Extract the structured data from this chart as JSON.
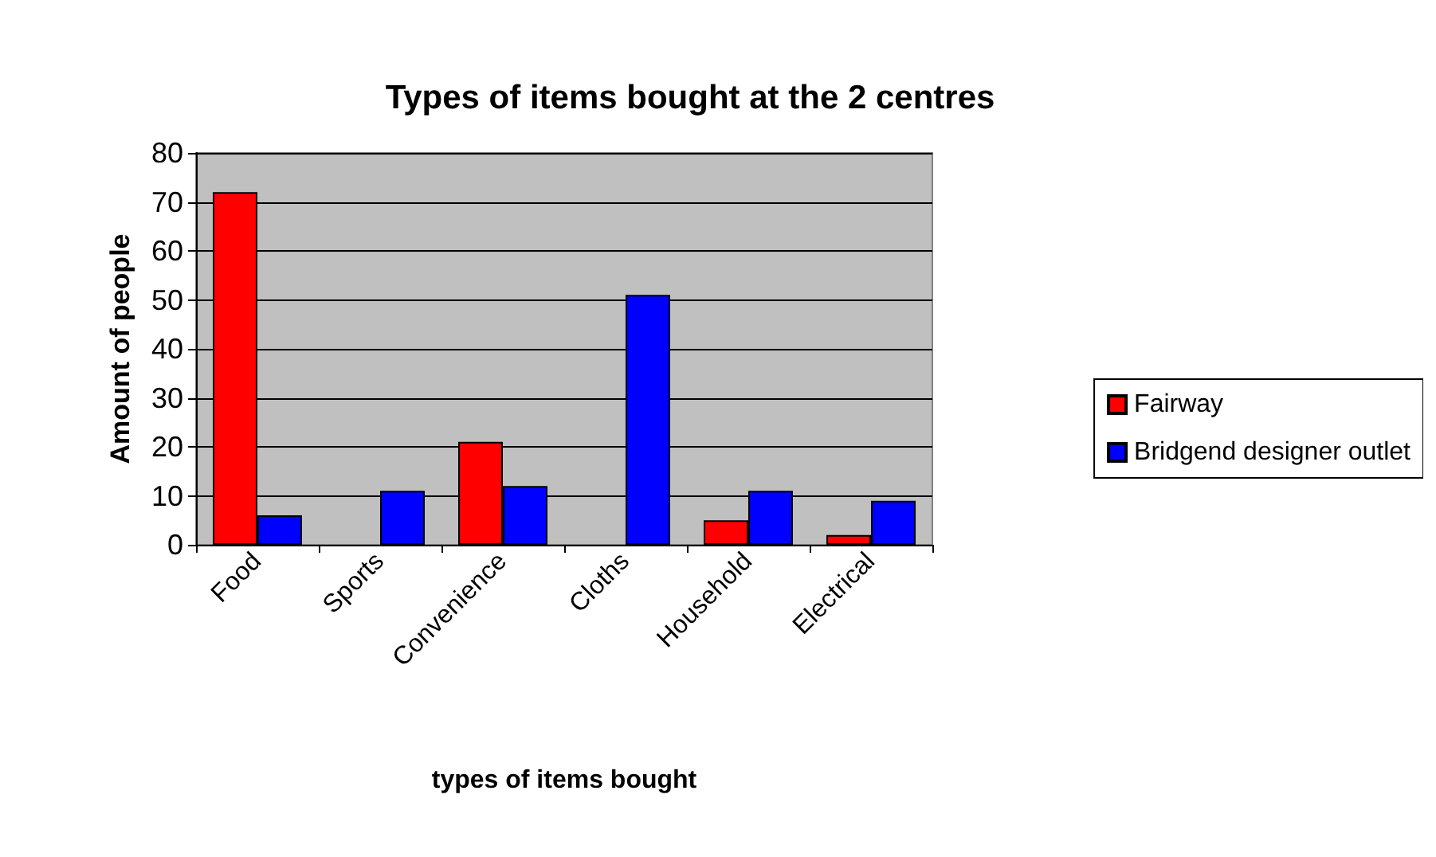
{
  "chart_data": {
    "type": "bar",
    "title": "Types of items bought at the 2 centres",
    "xlabel": "types of items bought",
    "ylabel": "Amount of people",
    "categories": [
      "Food",
      "Sports",
      "Convenience",
      "Cloths",
      "Household",
      "Electrical"
    ],
    "series": [
      {
        "name": "Fairway",
        "color": "#ff0000",
        "values": [
          72,
          0,
          21,
          0,
          5,
          2
        ]
      },
      {
        "name": "Bridgend designer outlet",
        "color": "#0000ff",
        "values": [
          6,
          11,
          12,
          51,
          11,
          9
        ]
      }
    ],
    "ylim": [
      0,
      80
    ],
    "yticks": [
      0,
      10,
      20,
      30,
      40,
      50,
      60,
      70,
      80
    ],
    "grid": "y",
    "legend": "right"
  }
}
